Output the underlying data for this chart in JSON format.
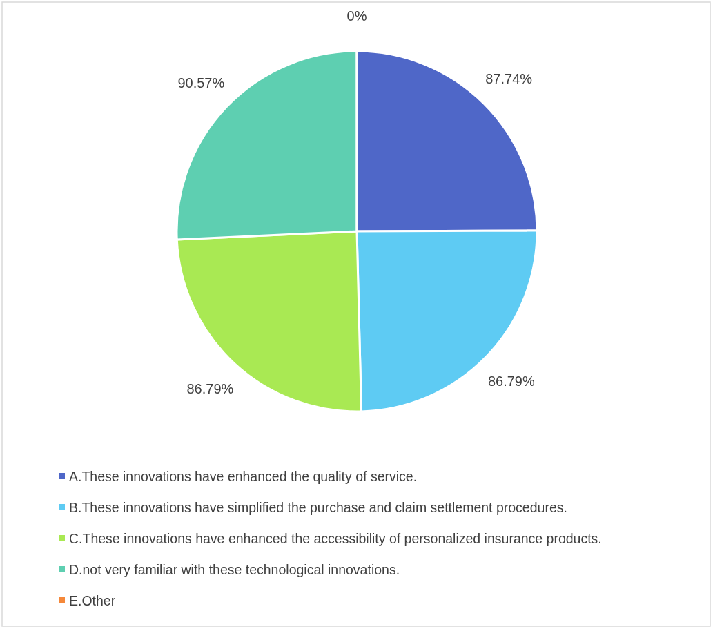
{
  "chart_data": {
    "type": "pie",
    "categories": [
      "A.These innovations have enhanced the quality of service.",
      "B.These innovations have simplified the purchase and claim settlement procedures.",
      "C.These innovations have enhanced the accessibility of personalized insurance products.",
      "D.not very familiar with these technological innovations.",
      "E.Other"
    ],
    "values": [
      87.74,
      86.79,
      86.79,
      90.57,
      0
    ],
    "value_labels": [
      "87.74%",
      "86.79%",
      "86.79%",
      "90.57%",
      "0%"
    ],
    "colors": [
      "#4f67c8",
      "#5ecbf3",
      "#a9e953",
      "#5ecfb1",
      "#f5883a"
    ],
    "legend": "bottom"
  }
}
